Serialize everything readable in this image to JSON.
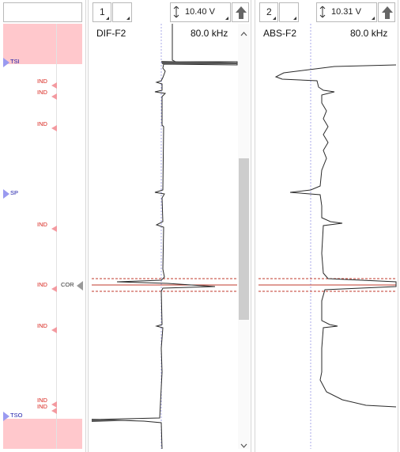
{
  "left_track": {
    "markers": [
      {
        "label": "TSI",
        "kind": "blue"
      },
      {
        "label": "IND",
        "kind": "red"
      },
      {
        "label": "IND",
        "kind": "red"
      },
      {
        "label": "IND",
        "kind": "red"
      },
      {
        "label": "SP",
        "kind": "blue"
      },
      {
        "label": "IND",
        "kind": "red"
      },
      {
        "label": "IND",
        "kind": "red"
      },
      {
        "label": "COR",
        "kind": "gray"
      },
      {
        "label": "IND",
        "kind": "red"
      },
      {
        "label": "IND",
        "kind": "red"
      },
      {
        "label": "IND",
        "kind": "red"
      },
      {
        "label": "TSO",
        "kind": "blue"
      }
    ]
  },
  "channels": [
    {
      "number": "1",
      "voltage": "10.40 V",
      "name": "DIF-F2",
      "frequency": "80.0 kHz"
    },
    {
      "number": "2",
      "voltage": "10.31 V",
      "name": "ABS-F2",
      "frequency": "80.0 kHz"
    }
  ],
  "icons": {
    "vertical_arrows": "up-down-arrow-icon",
    "up_button": "up-arrow-icon",
    "scroll_up": "chevron-up-icon",
    "scroll_down": "chevron-down-icon"
  },
  "colors": {
    "pink_zone": "#ffc8cc",
    "marker_blue": "#9a9af0",
    "marker_red": "#f39aa0",
    "cursor_red": "#c0392b",
    "trace": "#2a2a2a"
  }
}
